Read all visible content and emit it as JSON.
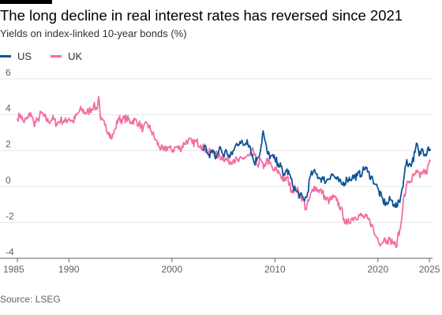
{
  "title": "The long decline in real interest rates has reversed since 2021",
  "subtitle": "Yields on index-linked 10-year bonds (%)",
  "source": "Source: LSEG",
  "colors": {
    "US": "#0f5499",
    "UK": "#f26ea3",
    "grid": "#e6e6e6",
    "axis": "#66605c",
    "brand_bar": "#000000"
  },
  "chart_data": {
    "type": "line",
    "title": "The long decline in real interest rates has reversed since 2021",
    "subtitle": "Yields on index-linked 10-year bonds (%)",
    "xlabel": "",
    "ylabel": "",
    "xlim": [
      1985,
      2025.3
    ],
    "ylim": [
      -4,
      6
    ],
    "x_ticks": [
      1985,
      1990,
      2000,
      2010,
      2020,
      2025
    ],
    "x_tick_labels": [
      "1985",
      "1990",
      "2000",
      "2010",
      "2020",
      "2025"
    ],
    "y_ticks": [
      6,
      4,
      2,
      0,
      -2,
      -4
    ],
    "y_tick_labels": [
      "6",
      "4",
      "2",
      "0",
      "-2",
      "-4"
    ],
    "grid": true,
    "legend_position": "top-left",
    "series": [
      {
        "name": "US",
        "points": [
          [
            2003.0,
            2.0
          ],
          [
            2003.3,
            2.2
          ],
          [
            2003.6,
            1.8
          ],
          [
            2004.0,
            1.9
          ],
          [
            2004.3,
            1.6
          ],
          [
            2004.7,
            2.2
          ],
          [
            2005.0,
            1.7
          ],
          [
            2005.3,
            2.0
          ],
          [
            2005.6,
            1.6
          ],
          [
            2006.0,
            2.0
          ],
          [
            2006.3,
            2.4
          ],
          [
            2006.6,
            2.5
          ],
          [
            2007.0,
            2.3
          ],
          [
            2007.3,
            2.6
          ],
          [
            2007.6,
            2.2
          ],
          [
            2008.0,
            1.3
          ],
          [
            2008.3,
            1.6
          ],
          [
            2008.6,
            2.0
          ],
          [
            2008.85,
            3.1
          ],
          [
            2009.0,
            2.6
          ],
          [
            2009.3,
            1.8
          ],
          [
            2009.6,
            1.7
          ],
          [
            2010.0,
            1.5
          ],
          [
            2010.3,
            1.3
          ],
          [
            2010.6,
            1.1
          ],
          [
            2010.8,
            0.6
          ],
          [
            2011.1,
            0.9
          ],
          [
            2011.4,
            0.7
          ],
          [
            2011.7,
            0.1
          ],
          [
            2012.0,
            -0.2
          ],
          [
            2012.4,
            -0.5
          ],
          [
            2012.8,
            -0.7
          ],
          [
            2013.1,
            -0.6
          ],
          [
            2013.4,
            0.5
          ],
          [
            2013.7,
            0.8
          ],
          [
            2014.0,
            0.7
          ],
          [
            2014.3,
            0.5
          ],
          [
            2014.7,
            0.4
          ],
          [
            2015.0,
            0.3
          ],
          [
            2015.5,
            0.7
          ],
          [
            2016.0,
            0.4
          ],
          [
            2016.5,
            0.1
          ],
          [
            2017.0,
            0.4
          ],
          [
            2017.5,
            0.5
          ],
          [
            2018.0,
            0.6
          ],
          [
            2018.5,
            0.8
          ],
          [
            2018.8,
            1.1
          ],
          [
            2019.0,
            0.8
          ],
          [
            2019.5,
            0.4
          ],
          [
            2019.8,
            0.1
          ],
          [
            2020.1,
            -0.3
          ],
          [
            2020.5,
            -0.8
          ],
          [
            2020.9,
            -1.0
          ],
          [
            2021.2,
            -0.7
          ],
          [
            2021.6,
            -1.0
          ],
          [
            2021.9,
            -1.1
          ],
          [
            2022.2,
            -0.6
          ],
          [
            2022.5,
            0.4
          ],
          [
            2022.8,
            1.5
          ],
          [
            2023.0,
            1.2
          ],
          [
            2023.3,
            1.3
          ],
          [
            2023.6,
            1.9
          ],
          [
            2023.8,
            2.4
          ],
          [
            2024.0,
            1.7
          ],
          [
            2024.3,
            2.1
          ],
          [
            2024.6,
            1.8
          ],
          [
            2024.9,
            2.2
          ],
          [
            2025.1,
            2.1
          ]
        ]
      },
      {
        "name": "UK",
        "points": [
          [
            1985.0,
            3.8
          ],
          [
            1985.3,
            4.0
          ],
          [
            1985.6,
            3.6
          ],
          [
            1986.0,
            3.8
          ],
          [
            1986.3,
            4.1
          ],
          [
            1986.6,
            3.5
          ],
          [
            1987.0,
            3.7
          ],
          [
            1987.3,
            4.1
          ],
          [
            1987.6,
            3.9
          ],
          [
            1988.0,
            3.6
          ],
          [
            1988.4,
            3.8
          ],
          [
            1988.8,
            3.5
          ],
          [
            1989.2,
            3.7
          ],
          [
            1989.6,
            3.6
          ],
          [
            1990.0,
            3.8
          ],
          [
            1990.4,
            3.6
          ],
          [
            1990.8,
            4.0
          ],
          [
            1991.2,
            4.3
          ],
          [
            1991.6,
            4.1
          ],
          [
            1992.0,
            4.2
          ],
          [
            1992.4,
            4.5
          ],
          [
            1992.7,
            4.3
          ],
          [
            1992.9,
            5.0
          ],
          [
            1993.1,
            3.7
          ],
          [
            1993.5,
            3.4
          ],
          [
            1993.9,
            3.0
          ],
          [
            1994.2,
            2.7
          ],
          [
            1994.5,
            3.2
          ],
          [
            1994.8,
            3.8
          ],
          [
            1995.2,
            3.7
          ],
          [
            1995.6,
            3.8
          ],
          [
            1996.0,
            3.6
          ],
          [
            1996.4,
            3.7
          ],
          [
            1996.8,
            3.5
          ],
          [
            1997.2,
            3.2
          ],
          [
            1997.6,
            3.5
          ],
          [
            1998.0,
            3.1
          ],
          [
            1998.4,
            2.6
          ],
          [
            1998.8,
            2.2
          ],
          [
            1999.2,
            2.0
          ],
          [
            1999.6,
            2.2
          ],
          [
            2000.0,
            2.0
          ],
          [
            2000.4,
            2.2
          ],
          [
            2000.8,
            2.1
          ],
          [
            2001.2,
            2.4
          ],
          [
            2001.6,
            2.6
          ],
          [
            2002.0,
            2.4
          ],
          [
            2002.4,
            2.5
          ],
          [
            2002.8,
            2.3
          ],
          [
            2003.2,
            2.1
          ],
          [
            2003.6,
            1.9
          ],
          [
            2004.0,
            1.9
          ],
          [
            2004.5,
            1.7
          ],
          [
            2005.0,
            1.6
          ],
          [
            2005.5,
            1.4
          ],
          [
            2006.0,
            1.5
          ],
          [
            2006.5,
            1.4
          ],
          [
            2007.0,
            1.6
          ],
          [
            2007.5,
            1.7
          ],
          [
            2007.9,
            2.0
          ],
          [
            2008.3,
            1.2
          ],
          [
            2008.6,
            1.5
          ],
          [
            2008.9,
            1.0
          ],
          [
            2009.2,
            1.5
          ],
          [
            2009.5,
            1.3
          ],
          [
            2009.8,
            0.9
          ],
          [
            2010.2,
            0.9
          ],
          [
            2010.5,
            0.7
          ],
          [
            2010.9,
            0.3
          ],
          [
            2011.2,
            0.5
          ],
          [
            2011.6,
            -0.2
          ],
          [
            2012.0,
            -0.1
          ],
          [
            2012.4,
            -0.4
          ],
          [
            2012.8,
            -0.8
          ],
          [
            2013.0,
            -1.3
          ],
          [
            2013.4,
            -0.6
          ],
          [
            2013.8,
            0.0
          ],
          [
            2014.2,
            -0.2
          ],
          [
            2014.6,
            -0.3
          ],
          [
            2014.9,
            -0.7
          ],
          [
            2015.3,
            -0.8
          ],
          [
            2015.7,
            -0.6
          ],
          [
            2016.0,
            -0.8
          ],
          [
            2016.4,
            -1.2
          ],
          [
            2016.7,
            -1.8
          ],
          [
            2017.0,
            -2.1
          ],
          [
            2017.4,
            -1.8
          ],
          [
            2017.8,
            -1.7
          ],
          [
            2018.2,
            -1.6
          ],
          [
            2018.6,
            -1.7
          ],
          [
            2019.0,
            -1.8
          ],
          [
            2019.4,
            -2.1
          ],
          [
            2019.7,
            -2.7
          ],
          [
            2020.0,
            -2.9
          ],
          [
            2020.3,
            -3.2
          ],
          [
            2020.6,
            -2.9
          ],
          [
            2020.9,
            -3.0
          ],
          [
            2021.2,
            -3.0
          ],
          [
            2021.5,
            -3.1
          ],
          [
            2021.75,
            -3.4
          ],
          [
            2021.9,
            -2.9
          ],
          [
            2022.2,
            -2.3
          ],
          [
            2022.45,
            -0.8
          ],
          [
            2022.7,
            -0.3
          ],
          [
            2022.9,
            0.3
          ],
          [
            2023.2,
            0.3
          ],
          [
            2023.5,
            0.6
          ],
          [
            2023.8,
            0.8
          ],
          [
            2024.1,
            0.5
          ],
          [
            2024.4,
            0.9
          ],
          [
            2024.7,
            0.7
          ],
          [
            2024.9,
            1.2
          ],
          [
            2025.1,
            1.4
          ]
        ]
      }
    ]
  }
}
